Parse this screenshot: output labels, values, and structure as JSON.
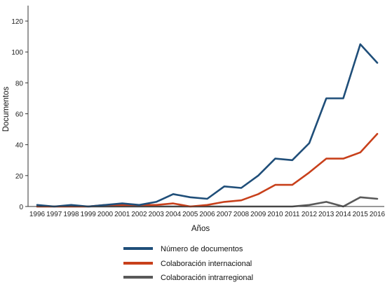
{
  "chart_data": {
    "type": "line",
    "title": "",
    "xlabel": "Años",
    "ylabel": "Documentos",
    "categories": [
      "1996",
      "1997",
      "1998",
      "1999",
      "2000",
      "2001",
      "2002",
      "2003",
      "2004",
      "2005",
      "2006",
      "2007",
      "2008",
      "2009",
      "2010",
      "2011",
      "2012",
      "2013",
      "2014",
      "2015",
      "2016"
    ],
    "ylim": [
      0,
      130
    ],
    "yticks": [
      0,
      20,
      40,
      60,
      80,
      100,
      120
    ],
    "grid": false,
    "legend_position": "bottom",
    "series": [
      {
        "name": "Número de documentos",
        "color": "#1f4e79",
        "values": [
          1,
          0,
          1,
          0,
          1,
          2,
          1,
          3,
          8,
          6,
          5,
          13,
          12,
          20,
          31,
          30,
          41,
          70,
          70,
          105,
          93
        ]
      },
      {
        "name": "Colaboración internacional",
        "color": "#c8401b",
        "values": [
          0,
          0,
          0,
          0,
          1,
          1,
          1,
          1,
          2,
          0,
          1,
          3,
          4,
          8,
          14,
          14,
          22,
          31,
          31,
          35,
          47
        ]
      },
      {
        "name": "Colaboración intrarregional",
        "color": "#595959",
        "values": [
          0,
          0,
          0,
          0,
          0,
          0,
          0,
          0,
          0,
          0,
          0,
          0,
          0,
          0,
          0,
          0,
          1,
          3,
          0,
          6,
          5
        ]
      }
    ]
  }
}
